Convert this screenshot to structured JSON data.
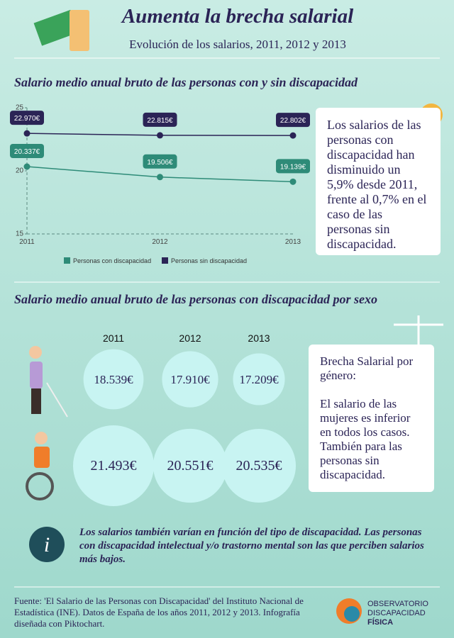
{
  "header": {
    "title": "Aumenta la brecha salarial",
    "subtitle": "Evolución de los salarios, 2011, 2012 y 2013"
  },
  "chart_data": [
    {
      "type": "line",
      "title": "Salario medio anual bruto de las personas con y sin discapacidad",
      "categories": [
        "2011",
        "2012",
        "2013"
      ],
      "ylim": [
        15,
        25
      ],
      "yticks": [
        15,
        20,
        25
      ],
      "grid": false,
      "legend": "bottom",
      "series": [
        {
          "name": "Personas con discapacidad",
          "color": "#2e8b78",
          "values": [
            20.337,
            19.506,
            19.139
          ],
          "value_labels": [
            "20.337€",
            "19.506€",
            "19.139€"
          ]
        },
        {
          "name": "Personas sin discapacidad",
          "color": "#2b2456",
          "values": [
            22.97,
            22.815,
            22.802
          ],
          "value_labels": [
            "22.970€",
            "22.815€",
            "22.802€"
          ]
        }
      ]
    },
    {
      "type": "bubble",
      "title": "Salario medio anual bruto de las personas con discapacidad por sexo",
      "categories": [
        "2011",
        "2012",
        "2013"
      ],
      "color": "#c8f4f2",
      "series": [
        {
          "values": [
            18539,
            17910,
            17209
          ],
          "value_labels": [
            "18.539€",
            "17.910€",
            "17.209€"
          ]
        },
        {
          "values": [
            21493,
            20551,
            20535
          ],
          "value_labels": [
            "21.493€",
            "20.551€",
            "20.535€"
          ]
        }
      ]
    }
  ],
  "note1": "Los salarios de las personas con discapacidad han disminuido un 5,9% desde 2011, frente al 0,7% en el caso de las personas sin discapacidad.",
  "note2": {
    "title": "Brecha Salarial por género:",
    "text": "El salario de las mujeres es inferior en todos los casos. También para las personas sin discapacidad."
  },
  "info": "Los salarios también varían en función del tipo de discapacidad. Las personas con discapacidad intelectual y/o trastorno mental son las que perciben salarios más bajos.",
  "footer": {
    "source": "Fuente: 'El Salario de las Personas con Discapacidad' del Instituto Nacional de Estadística (INE). Datos de España de los años 2011, 2012 y 2013. Infografía diseñada con Piktochart.",
    "logo": [
      "OBSERVATORIO",
      "DISCAPACIDAD",
      "FÍSICA"
    ]
  }
}
